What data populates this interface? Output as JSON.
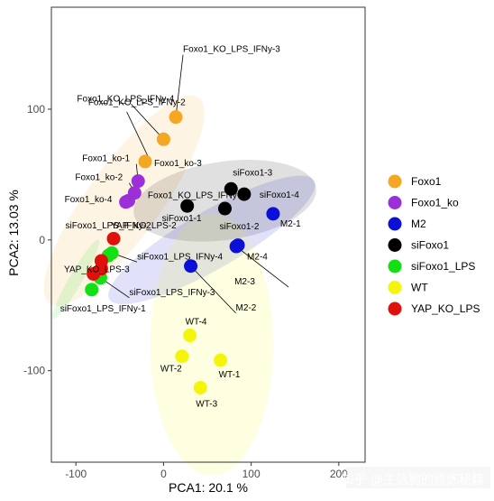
{
  "chart_data": {
    "type": "scatter",
    "xlabel": "PCA1: 20.1 %",
    "ylabel": "PCA2: 13.03 %",
    "xlim": [
      -128,
      230
    ],
    "ylim": [
      -170,
      178
    ],
    "xticks": [
      -100,
      0,
      100,
      200
    ],
    "yticks": [
      -100,
      0,
      100
    ],
    "legend_position": "right",
    "series": [
      {
        "name": "Foxo1",
        "color": "#F5A623",
        "ellipse": {
          "cx": -45,
          "cy": 30,
          "rx": 145,
          "ry": 28,
          "angle": -54
        },
        "points": [
          {
            "label": "Foxo1_KO_LPS_IFNy-3",
            "x": 14,
            "y": 94
          },
          {
            "label": "Foxo1_KO_LPS_IFNy-4",
            "x": 0,
            "y": 77
          },
          {
            "label": "Foxo1_ko-3",
            "x": -21,
            "y": 60
          }
        ]
      },
      {
        "name": "Foxo1_ko",
        "color": "#9B30D9",
        "points": [
          {
            "label": "Foxo1_ko-1",
            "x": -29,
            "y": 45
          },
          {
            "label": "Foxo1_ko-2",
            "x": -33,
            "y": 36
          },
          {
            "label": "Foxo1_ko-4",
            "x": -43,
            "y": 29
          },
          {
            "label": "",
            "x": -40,
            "y": 30
          }
        ]
      },
      {
        "name": "M2",
        "color": "#0A10D8",
        "ellipse": {
          "cx": 55,
          "cy": 0,
          "rx": 135,
          "ry": 22,
          "angle": -30
        },
        "points": [
          {
            "label": "M2-1",
            "x": 125,
            "y": 20
          },
          {
            "label": "M2-4",
            "x": 85,
            "y": -4
          },
          {
            "label": "M2-3",
            "x": 83,
            "y": -5
          },
          {
            "label": "M2-2",
            "x": 31,
            "y": -20
          }
        ]
      },
      {
        "name": "siFoxo1",
        "color": "#000000",
        "ellipse": {
          "cx": 70,
          "cy": 30,
          "rx": 105,
          "ry": 30,
          "angle": -8
        },
        "points": [
          {
            "label": "siFoxo1-3",
            "x": 77,
            "y": 39
          },
          {
            "label": "siFoxo1-4",
            "x": 92,
            "y": 35
          },
          {
            "label": "siFoxo1-1",
            "x": 27,
            "y": 26
          },
          {
            "label": "siFoxo1-2",
            "x": 70,
            "y": 24
          }
        ]
      },
      {
        "name": "siFoxo1_LPS",
        "color": "#12E012",
        "ellipse": {
          "cx": -100,
          "cy": -30,
          "rx": 52,
          "ry": 5,
          "angle": -60
        },
        "points": [
          {
            "label": "siFoxo1_LPS_IFNy-4",
            "x": -59,
            "y": -10
          },
          {
            "label": "",
            "x": -63,
            "y": -12
          },
          {
            "label": "siFoxo1_LPS_IFNy-3",
            "x": -72,
            "y": -29
          },
          {
            "label": "siFoxo1_LPS_IFNy-1",
            "x": -82,
            "y": -38
          }
        ]
      },
      {
        "name": "WT",
        "color": "#F5F50C",
        "ellipse": {
          "cx": 55,
          "cy": -80,
          "rx": 70,
          "ry": 100,
          "angle": 0
        },
        "points": [
          {
            "label": "WT-4",
            "x": 30,
            "y": -73
          },
          {
            "label": "WT-1",
            "x": 65,
            "y": -92
          },
          {
            "label": "WT-2",
            "x": 21,
            "y": -89
          },
          {
            "label": "WT-3",
            "x": 42,
            "y": -113
          }
        ]
      },
      {
        "name": "YAP_KO_LPS",
        "color": "#E0100C",
        "points": [
          {
            "label": "YAP_KO_LPS-3",
            "x": -57,
            "y": 1
          },
          {
            "label": "",
            "x": -71,
            "y": -16
          },
          {
            "label": "",
            "x": -71,
            "y": -22
          },
          {
            "label": "",
            "x": -80,
            "y": -26
          }
        ]
      }
    ],
    "label_text": {
      "foxo1_ko_lps_ifny_2": "Foxo1_KO_LPS_IFNy-2",
      "foxo1_ko_lps_ifny_1": "Foxo1_KO_LPS_IFNy-1",
      "yap_ko_lps_2": "YAP_KO_LPS-2",
      "siFoxo1_lps_ifny_2": "siFoxo1_LPS_IFNy-2"
    }
  },
  "watermark": "知乎 @生信狗的修炼秘籍"
}
